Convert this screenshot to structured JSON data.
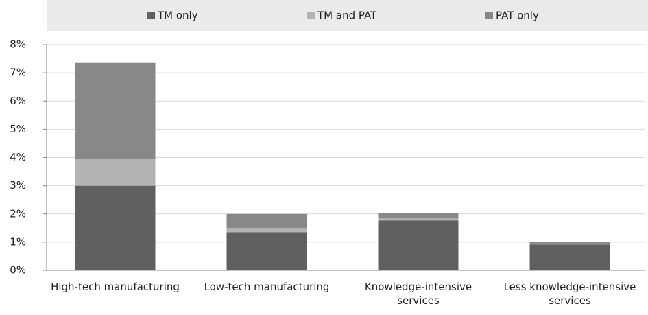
{
  "chart_data": {
    "type": "stacked_bar",
    "categories": [
      "High-tech manufacturing",
      "Low-tech manufacturing",
      "Knowledge-intensive services",
      "Less knowledge-intensive services"
    ],
    "series": [
      {
        "name": "TM only",
        "color": "#606060",
        "values": [
          3.0,
          1.35,
          1.77,
          0.92
        ]
      },
      {
        "name": "TM and PAT",
        "color": "#b4b4b4",
        "values": [
          0.95,
          0.15,
          0.07,
          0.03
        ]
      },
      {
        "name": "PAT only",
        "color": "#888888",
        "values": [
          3.4,
          0.5,
          0.2,
          0.07
        ]
      }
    ],
    "ylim": [
      0,
      8
    ],
    "yticks": [
      {
        "value": 0,
        "label": "0%"
      },
      {
        "value": 1,
        "label": "1%"
      },
      {
        "value": 2,
        "label": "2%"
      },
      {
        "value": 3,
        "label": "3%"
      },
      {
        "value": 4,
        "label": "4%"
      },
      {
        "value": 5,
        "label": "5%"
      },
      {
        "value": 6,
        "label": "6%"
      },
      {
        "value": 7,
        "label": "7%"
      },
      {
        "value": 8,
        "label": "8%"
      }
    ],
    "grid": true,
    "legend": "top"
  }
}
